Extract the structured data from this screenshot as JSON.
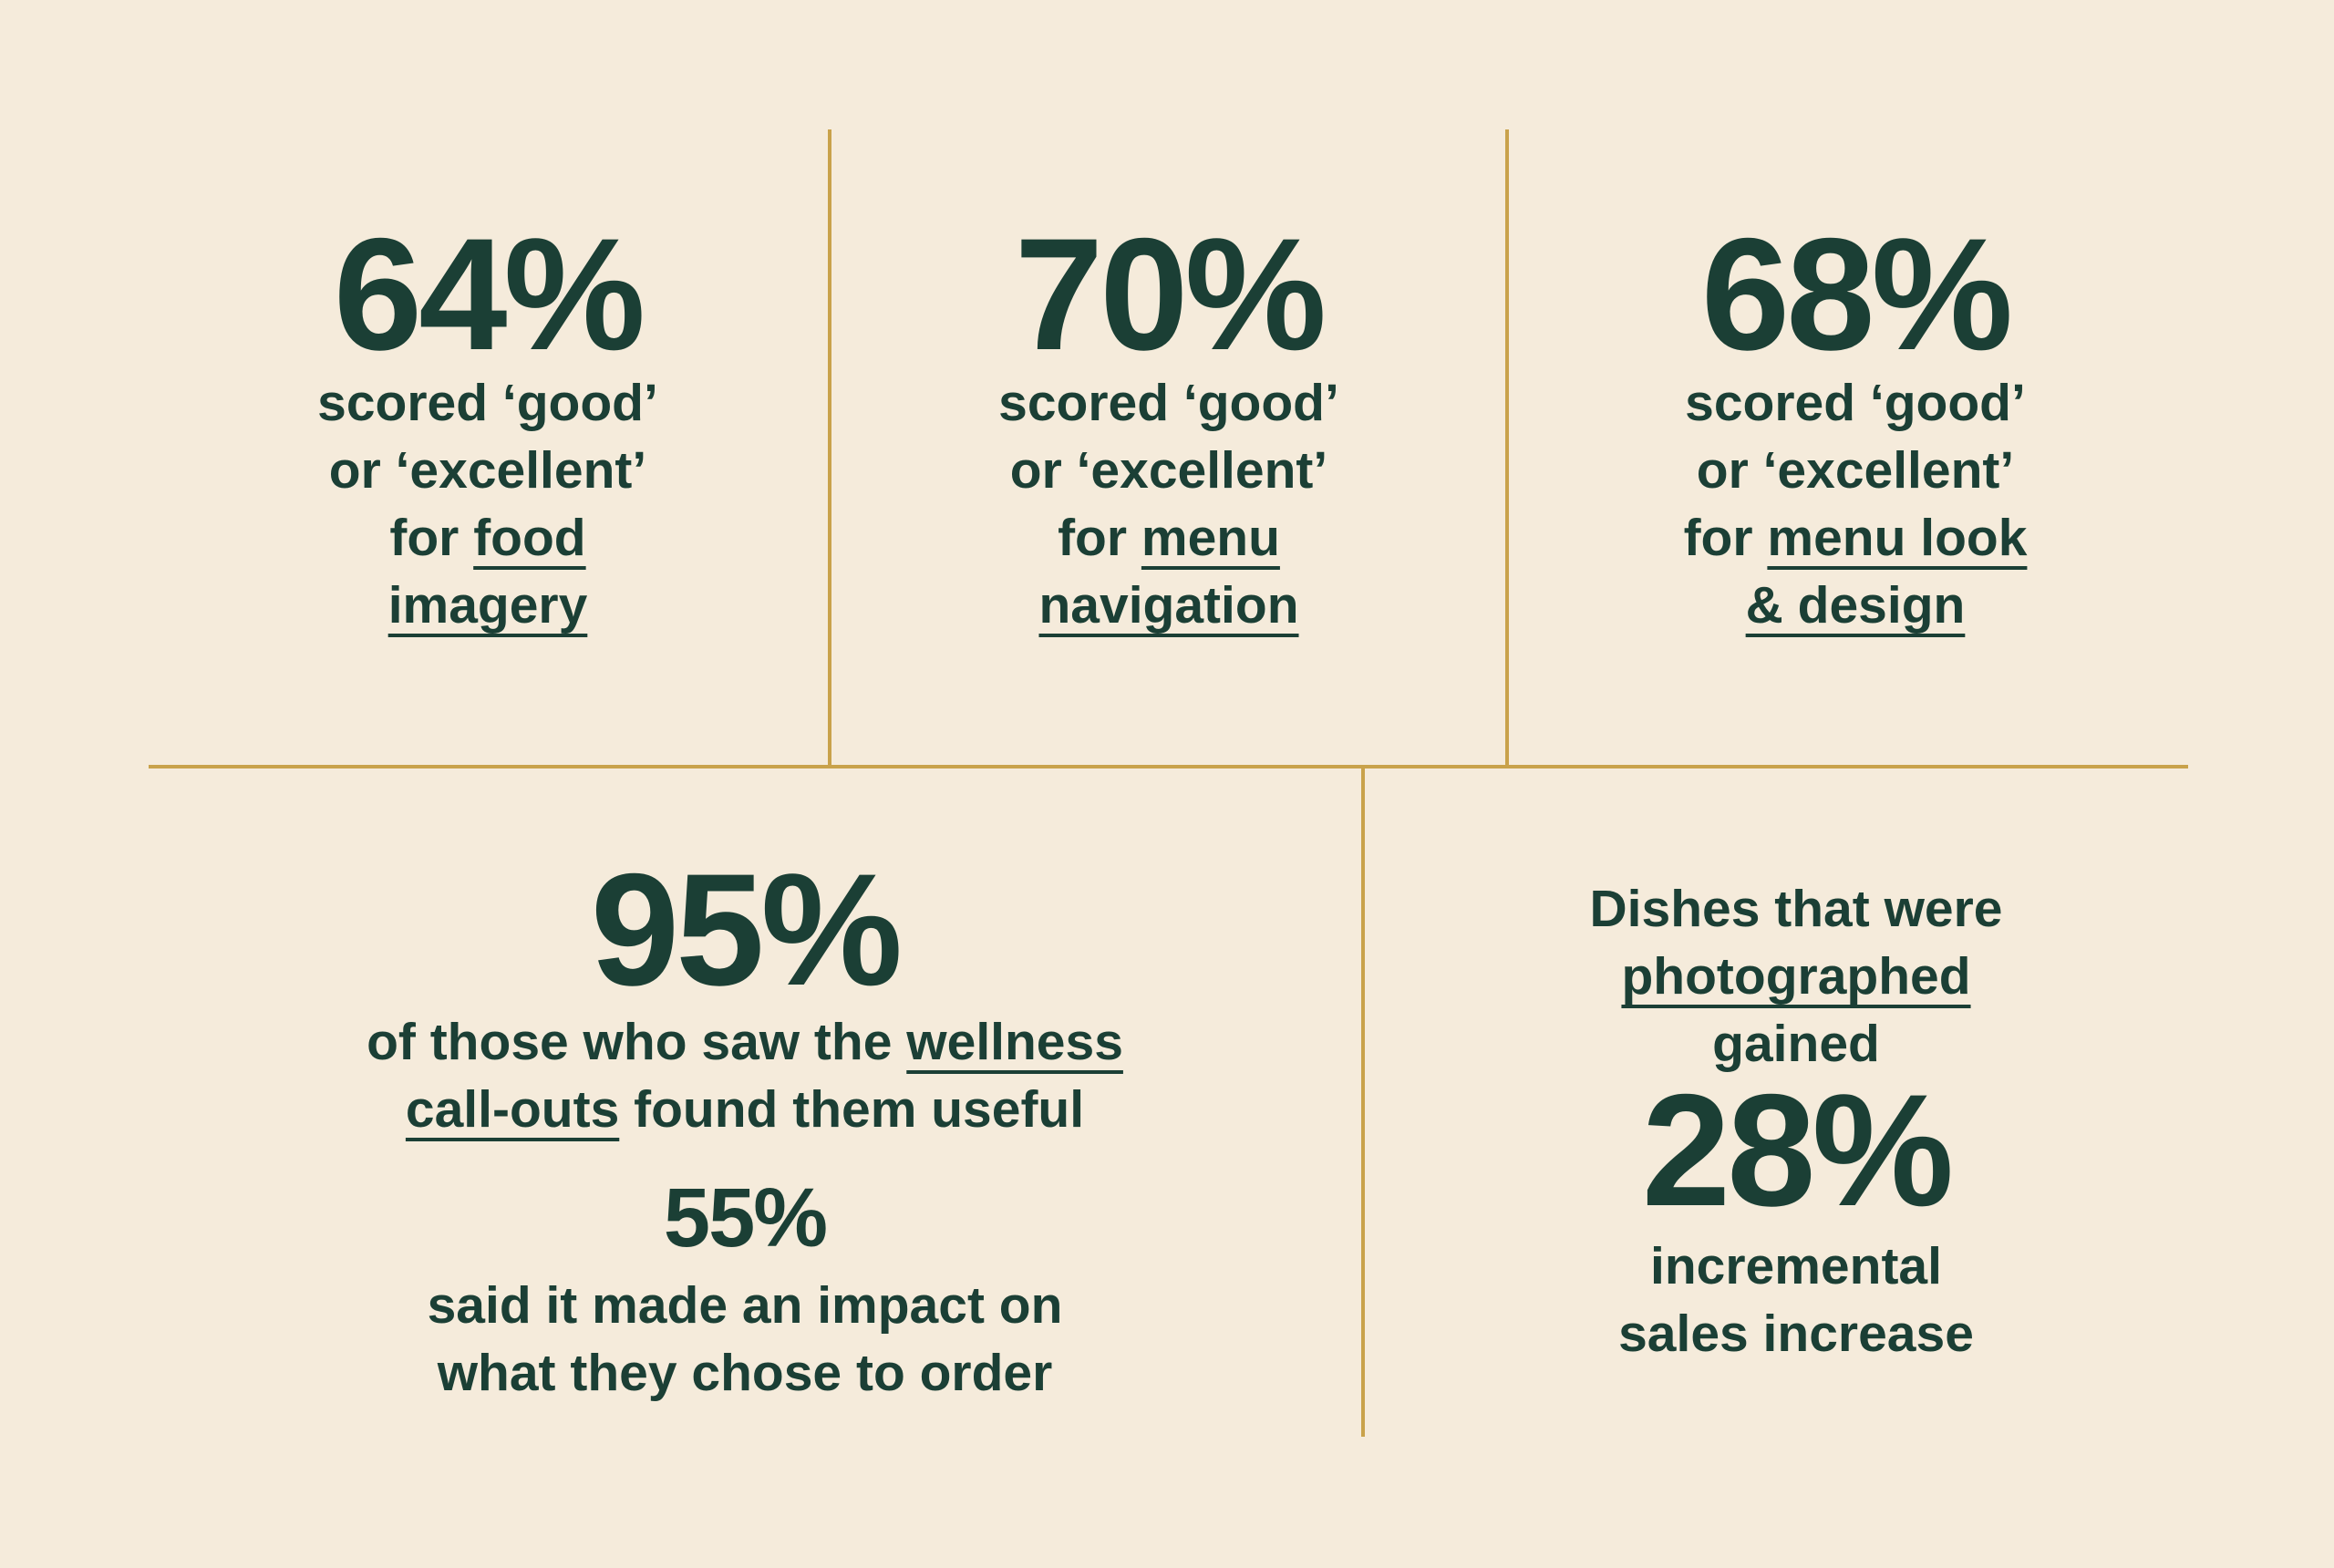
{
  "colors": {
    "background": "#f5ebdb",
    "text": "#1b3f35",
    "divider": "#c9a24b"
  },
  "stats": {
    "food_imagery": {
      "value": "64%",
      "line1": "scored ‘good’",
      "line2": "or ‘excellent’",
      "line3_pre": "for ",
      "line3_u": "food",
      "line4_u": "imagery"
    },
    "menu_navigation": {
      "value": "70%",
      "line1": "scored ‘good’",
      "line2": "or ‘excellent’",
      "line3_pre": "for ",
      "line3_u": "menu",
      "line4_u": "navigation"
    },
    "menu_design": {
      "value": "68%",
      "line1": "scored ‘good’",
      "line2": "or ‘excellent’",
      "line3_pre": "for ",
      "line3_u": "menu look",
      "line4_u": "& design"
    },
    "wellness": {
      "value": "95%",
      "line1_pre": "of those who saw the ",
      "line1_u": "wellness",
      "line2_u": "call-outs",
      "line2_post": " found them useful",
      "sub_value": "55%",
      "sub_line1": "said it made an impact on",
      "sub_line2": "what they chose to order"
    },
    "photographed": {
      "line1": "Dishes that were",
      "line2_u": "photographed",
      "line3": "gained",
      "value": "28%",
      "line4": "incremental",
      "line5": "sales increase"
    }
  }
}
